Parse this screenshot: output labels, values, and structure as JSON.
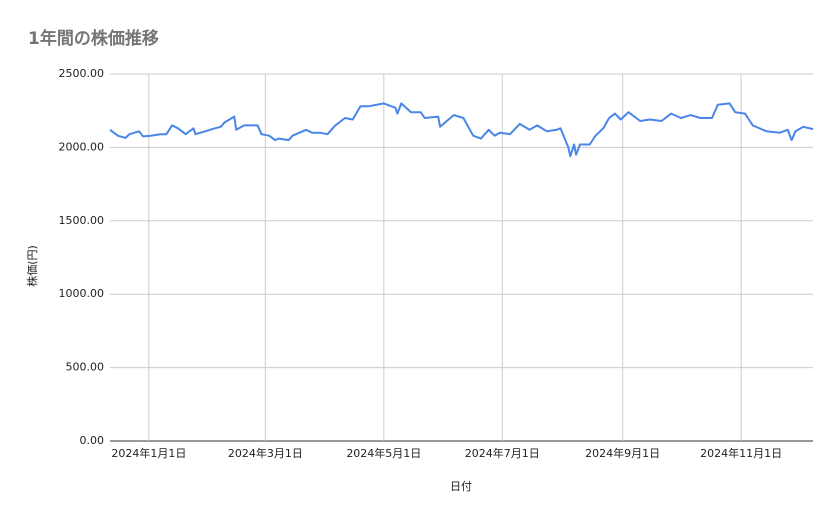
{
  "chart_data": {
    "type": "line",
    "title": "1年間の株価推移",
    "x_label": "日付",
    "y_label": "株価(円)",
    "grid": true,
    "x": [
      "2023-12-12",
      "2023-12-16",
      "2023-12-20",
      "2023-12-22",
      "2023-12-27",
      "2023-12-29",
      "2024-01-02",
      "2024-01-07",
      "2024-01-10",
      "2024-01-13",
      "2024-01-16",
      "2024-01-20",
      "2024-01-24",
      "2024-01-25",
      "2024-01-30",
      "2024-02-04",
      "2024-02-07",
      "2024-02-09",
      "2024-02-14",
      "2024-02-15",
      "2024-02-19",
      "2024-02-26",
      "2024-02-28",
      "2024-03-03",
      "2024-03-06",
      "2024-03-08",
      "2024-03-13",
      "2024-03-15",
      "2024-03-22",
      "2024-03-25",
      "2024-03-29",
      "2024-04-02",
      "2024-04-06",
      "2024-04-11",
      "2024-04-15",
      "2024-04-19",
      "2024-04-23",
      "2024-05-01",
      "2024-05-07",
      "2024-05-08",
      "2024-05-10",
      "2024-05-15",
      "2024-05-20",
      "2024-05-22",
      "2024-05-29",
      "2024-05-30",
      "2024-06-06",
      "2024-06-11",
      "2024-06-16",
      "2024-06-20",
      "2024-06-24",
      "2024-06-27",
      "2024-06-30",
      "2024-07-05",
      "2024-07-10",
      "2024-07-15",
      "2024-07-19",
      "2024-07-24",
      "2024-07-29",
      "2024-07-31",
      "2024-08-04",
      "2024-08-05",
      "2024-08-07",
      "2024-08-08",
      "2024-08-10",
      "2024-08-15",
      "2024-08-18",
      "2024-08-22",
      "2024-08-25",
      "2024-08-28",
      "2024-08-31",
      "2024-09-04",
      "2024-09-10",
      "2024-09-15",
      "2024-09-21",
      "2024-09-26",
      "2024-10-01",
      "2024-10-06",
      "2024-10-11",
      "2024-10-17",
      "2024-10-20",
      "2024-10-26",
      "2024-10-29",
      "2024-11-03",
      "2024-11-07",
      "2024-11-14",
      "2024-11-21",
      "2024-11-25",
      "2024-11-27",
      "2024-11-29",
      "2024-12-03",
      "2024-12-08"
    ],
    "series": [
      {
        "name": "株価(円)",
        "color": "#4a86e8",
        "values": [
          2120,
          2080,
          2065,
          2090,
          2110,
          2075,
          2080,
          2090,
          2090,
          2150,
          2130,
          2090,
          2130,
          2090,
          2110,
          2130,
          2140,
          2170,
          2210,
          2120,
          2150,
          2150,
          2090,
          2080,
          2050,
          2060,
          2050,
          2080,
          2120,
          2100,
          2100,
          2090,
          2150,
          2200,
          2190,
          2280,
          2280,
          2300,
          2270,
          2230,
          2300,
          2240,
          2240,
          2200,
          2210,
          2140,
          2220,
          2200,
          2080,
          2060,
          2120,
          2080,
          2100,
          2090,
          2160,
          2120,
          2150,
          2110,
          2120,
          2130,
          2000,
          1940,
          2020,
          1950,
          2020,
          2020,
          2080,
          2130,
          2200,
          2230,
          2190,
          2240,
          2180,
          2190,
          2180,
          2230,
          2200,
          2220,
          2200,
          2200,
          2290,
          2300,
          2240,
          2230,
          2150,
          2110,
          2100,
          2120,
          2050,
          2110,
          2140,
          2125
        ]
      }
    ],
    "xlim": [
      "2023-12-12",
      "2024-12-08"
    ],
    "xticks": [
      {
        "value": "2024-01-01",
        "label": "2024年1月1日"
      },
      {
        "value": "2024-03-01",
        "label": "2024年3月1日"
      },
      {
        "value": "2024-05-01",
        "label": "2024年5月1日"
      },
      {
        "value": "2024-07-01",
        "label": "2024年7月1日"
      },
      {
        "value": "2024-09-01",
        "label": "2024年9月1日"
      },
      {
        "value": "2024-11-01",
        "label": "2024年11月1日"
      }
    ],
    "ylim": [
      0,
      2500
    ],
    "yticks": [
      {
        "value": 0,
        "label": "0.00"
      },
      {
        "value": 500,
        "label": "500.00"
      },
      {
        "value": 1000,
        "label": "1000.00"
      },
      {
        "value": 1500,
        "label": "1500.00"
      },
      {
        "value": 2000,
        "label": "2000.00"
      },
      {
        "value": 2500,
        "label": "2500.00"
      }
    ]
  }
}
